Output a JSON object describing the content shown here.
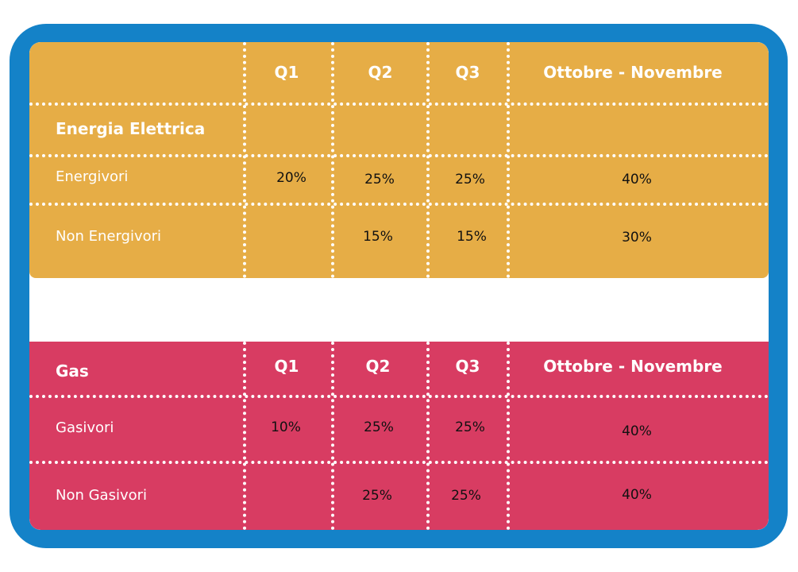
{
  "columns": [
    "Q1",
    "Q2",
    "Q3",
    "Ottobre - Novembre"
  ],
  "electricity": {
    "section_label": "Energia Elettrica",
    "rows": [
      {
        "label": "Energivori",
        "values": [
          "20%",
          "25%",
          "25%",
          "40%"
        ]
      },
      {
        "label": "Non Energivori",
        "values": [
          "",
          "15%",
          "15%",
          "30%"
        ]
      }
    ],
    "color": "#e6ad46"
  },
  "gas": {
    "section_label": "Gas",
    "rows": [
      {
        "label": "Gasivori",
        "values": [
          "10%",
          "25%",
          "25%",
          "40%"
        ]
      },
      {
        "label": "Non Gasivori",
        "values": [
          "",
          "25%",
          "25%",
          "40%"
        ]
      }
    ],
    "color": "#d83c62"
  },
  "frame_color": "#1482c8"
}
